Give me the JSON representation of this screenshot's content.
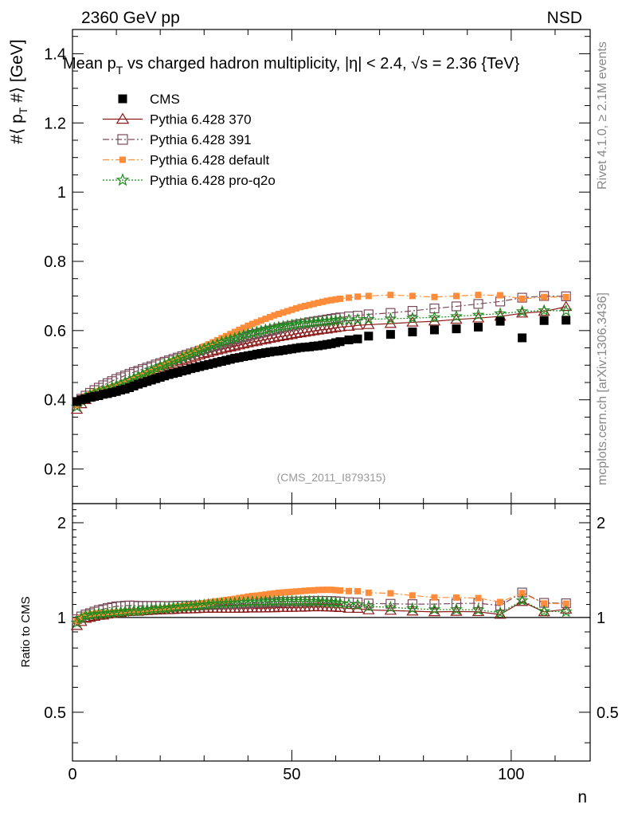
{
  "header": {
    "left": "2360 GeV pp",
    "right": "NSD"
  },
  "side": {
    "rivet": "Rivet 4.1.0, ≥ 2.1M events",
    "mcplots": "mcplots.cern.ch [arXiv:1306.3436]"
  },
  "chart_data": {
    "type": "scatter",
    "title": "Mean p_T vs charged hadron multiplicity, |η| < 2.4, √s = 2.36 {TeV}",
    "title_parts": {
      "a": "Mean p",
      "b": "T",
      "c": " vs charged hadron multiplicity, ",
      "d": "η| < 2.4, ",
      "e": "√s",
      "f": " = 2.36 {TeV}"
    },
    "watermark": "(CMS_2011_I879315)",
    "ylabel": "#⟨ p_T #⟩ [GeV]",
    "ylabel_parts": {
      "a": "#⟨ p",
      "b": "T",
      "c": " #⟩ [GeV]"
    },
    "xlabel": "n",
    "xlim": [
      0,
      118
    ],
    "ylim": [
      0.1,
      1.47
    ],
    "yticks": [
      "0.2",
      "0.4",
      "0.6",
      "0.8",
      "1",
      "1.2",
      "1.4"
    ],
    "xticks": [
      "0",
      "50",
      "100"
    ],
    "x": [
      1,
      2,
      3,
      4,
      5,
      6,
      7,
      8,
      9,
      10,
      11,
      12,
      13,
      14,
      15,
      16,
      17,
      18,
      19,
      20,
      21,
      22,
      23,
      24,
      25,
      26,
      27,
      28,
      29,
      30,
      31,
      32,
      33,
      34,
      35,
      36,
      37,
      38,
      39,
      40,
      41,
      42,
      43,
      44,
      45,
      46,
      47,
      48,
      49,
      50,
      51,
      52,
      53,
      54,
      55,
      56,
      57,
      58,
      59,
      60,
      61,
      63,
      65,
      67.5,
      72.5,
      77.5,
      82.5,
      87.5,
      92.5,
      97.5,
      102.5,
      107.5,
      112.5
    ],
    "series": [
      {
        "name": "CMS",
        "color": "#000000",
        "marker": "square-filled",
        "line": "none",
        "values": [
          0.395,
          0.4,
          0.403,
          0.407,
          0.41,
          0.412,
          0.416,
          0.418,
          0.421,
          0.424,
          0.428,
          0.431,
          0.435,
          0.44,
          0.445,
          0.449,
          0.453,
          0.457,
          0.461,
          0.465,
          0.469,
          0.473,
          0.476,
          0.479,
          0.483,
          0.486,
          0.49,
          0.493,
          0.496,
          0.499,
          0.502,
          0.505,
          0.508,
          0.511,
          0.514,
          0.517,
          0.52,
          0.522,
          0.525,
          0.527,
          0.529,
          0.532,
          0.534,
          0.536,
          0.538,
          0.54,
          0.541,
          0.543,
          0.545,
          0.547,
          0.549,
          0.551,
          0.552,
          0.553,
          0.555,
          0.556,
          0.558,
          0.56,
          0.562,
          0.565,
          0.568,
          0.573,
          0.576,
          0.584,
          0.589,
          0.596,
          0.602,
          0.605,
          0.61,
          0.627,
          0.579,
          0.629,
          0.63
        ]
      },
      {
        "name": "Pythia 6.428 370",
        "color": "#8b1a1a",
        "marker": "triangle-open",
        "line": "solid",
        "values": [
          0.372,
          0.388,
          0.4,
          0.407,
          0.413,
          0.418,
          0.423,
          0.428,
          0.433,
          0.438,
          0.443,
          0.449,
          0.454,
          0.46,
          0.465,
          0.471,
          0.476,
          0.481,
          0.486,
          0.491,
          0.496,
          0.5,
          0.504,
          0.509,
          0.513,
          0.517,
          0.521,
          0.525,
          0.529,
          0.533,
          0.536,
          0.54,
          0.543,
          0.546,
          0.549,
          0.552,
          0.555,
          0.558,
          0.561,
          0.564,
          0.567,
          0.569,
          0.572,
          0.574,
          0.577,
          0.579,
          0.582,
          0.584,
          0.586,
          0.588,
          0.591,
          0.593,
          0.595,
          0.597,
          0.599,
          0.601,
          0.603,
          0.604,
          0.606,
          0.608,
          0.61,
          0.612,
          0.615,
          0.617,
          0.62,
          0.624,
          0.627,
          0.632,
          0.636,
          0.641,
          0.65,
          0.655,
          0.669
        ]
      },
      {
        "name": "Pythia 6.428 391",
        "color": "#7a4a5a",
        "marker": "square-open",
        "line": "dashdot",
        "values": [
          0.39,
          0.403,
          0.412,
          0.42,
          0.428,
          0.435,
          0.442,
          0.448,
          0.454,
          0.46,
          0.465,
          0.47,
          0.475,
          0.48,
          0.484,
          0.489,
          0.493,
          0.497,
          0.502,
          0.506,
          0.51,
          0.514,
          0.518,
          0.522,
          0.526,
          0.53,
          0.534,
          0.538,
          0.542,
          0.546,
          0.55,
          0.554,
          0.558,
          0.562,
          0.566,
          0.57,
          0.574,
          0.577,
          0.581,
          0.584,
          0.588,
          0.591,
          0.594,
          0.597,
          0.6,
          0.603,
          0.606,
          0.609,
          0.612,
          0.614,
          0.617,
          0.619,
          0.621,
          0.624,
          0.626,
          0.628,
          0.63,
          0.632,
          0.634,
          0.636,
          0.638,
          0.641,
          0.643,
          0.647,
          0.651,
          0.657,
          0.664,
          0.67,
          0.677,
          0.684,
          0.695,
          0.7,
          0.699
        ]
      },
      {
        "name": "Pythia 6.428 default",
        "color": "#ff8c3a",
        "marker": "square-filled",
        "line": "dashdot",
        "values": [
          0.385,
          0.4,
          0.41,
          0.416,
          0.421,
          0.425,
          0.429,
          0.432,
          0.436,
          0.44,
          0.444,
          0.449,
          0.454,
          0.459,
          0.465,
          0.47,
          0.476,
          0.482,
          0.488,
          0.494,
          0.5,
          0.506,
          0.512,
          0.518,
          0.524,
          0.53,
          0.536,
          0.542,
          0.548,
          0.554,
          0.56,
          0.566,
          0.572,
          0.578,
          0.584,
          0.59,
          0.596,
          0.602,
          0.608,
          0.614,
          0.619,
          0.624,
          0.629,
          0.634,
          0.639,
          0.644,
          0.648,
          0.652,
          0.656,
          0.66,
          0.664,
          0.668,
          0.671,
          0.674,
          0.677,
          0.68,
          0.683,
          0.686,
          0.688,
          0.69,
          0.692,
          0.695,
          0.698,
          0.7,
          0.703,
          0.7,
          0.697,
          0.7,
          0.703,
          0.702,
          0.692,
          0.697,
          0.697
        ]
      },
      {
        "name": "Pythia 6.428 pro-q2o",
        "color": "#1e8b1e",
        "marker": "star-open",
        "line": "dotted",
        "values": [
          0.38,
          0.398,
          0.408,
          0.414,
          0.419,
          0.423,
          0.427,
          0.431,
          0.435,
          0.44,
          0.445,
          0.45,
          0.456,
          0.462,
          0.467,
          0.473,
          0.479,
          0.485,
          0.49,
          0.496,
          0.501,
          0.507,
          0.512,
          0.517,
          0.522,
          0.527,
          0.532,
          0.537,
          0.542,
          0.547,
          0.552,
          0.557,
          0.561,
          0.566,
          0.57,
          0.574,
          0.578,
          0.582,
          0.586,
          0.59,
          0.593,
          0.596,
          0.599,
          0.602,
          0.605,
          0.607,
          0.61,
          0.612,
          0.614,
          0.616,
          0.618,
          0.62,
          0.621,
          0.622,
          0.624,
          0.625,
          0.626,
          0.627,
          0.628,
          0.629,
          0.63,
          0.631,
          0.632,
          0.633,
          0.634,
          0.636,
          0.638,
          0.641,
          0.645,
          0.649,
          0.655,
          0.658,
          0.657
        ]
      }
    ],
    "ratio": {
      "ylabel": "Ratio to CMS",
      "ylim": [
        0.35,
        2.3
      ],
      "yticks": [
        "0.5",
        "1",
        "2"
      ],
      "reference": 1
    }
  }
}
